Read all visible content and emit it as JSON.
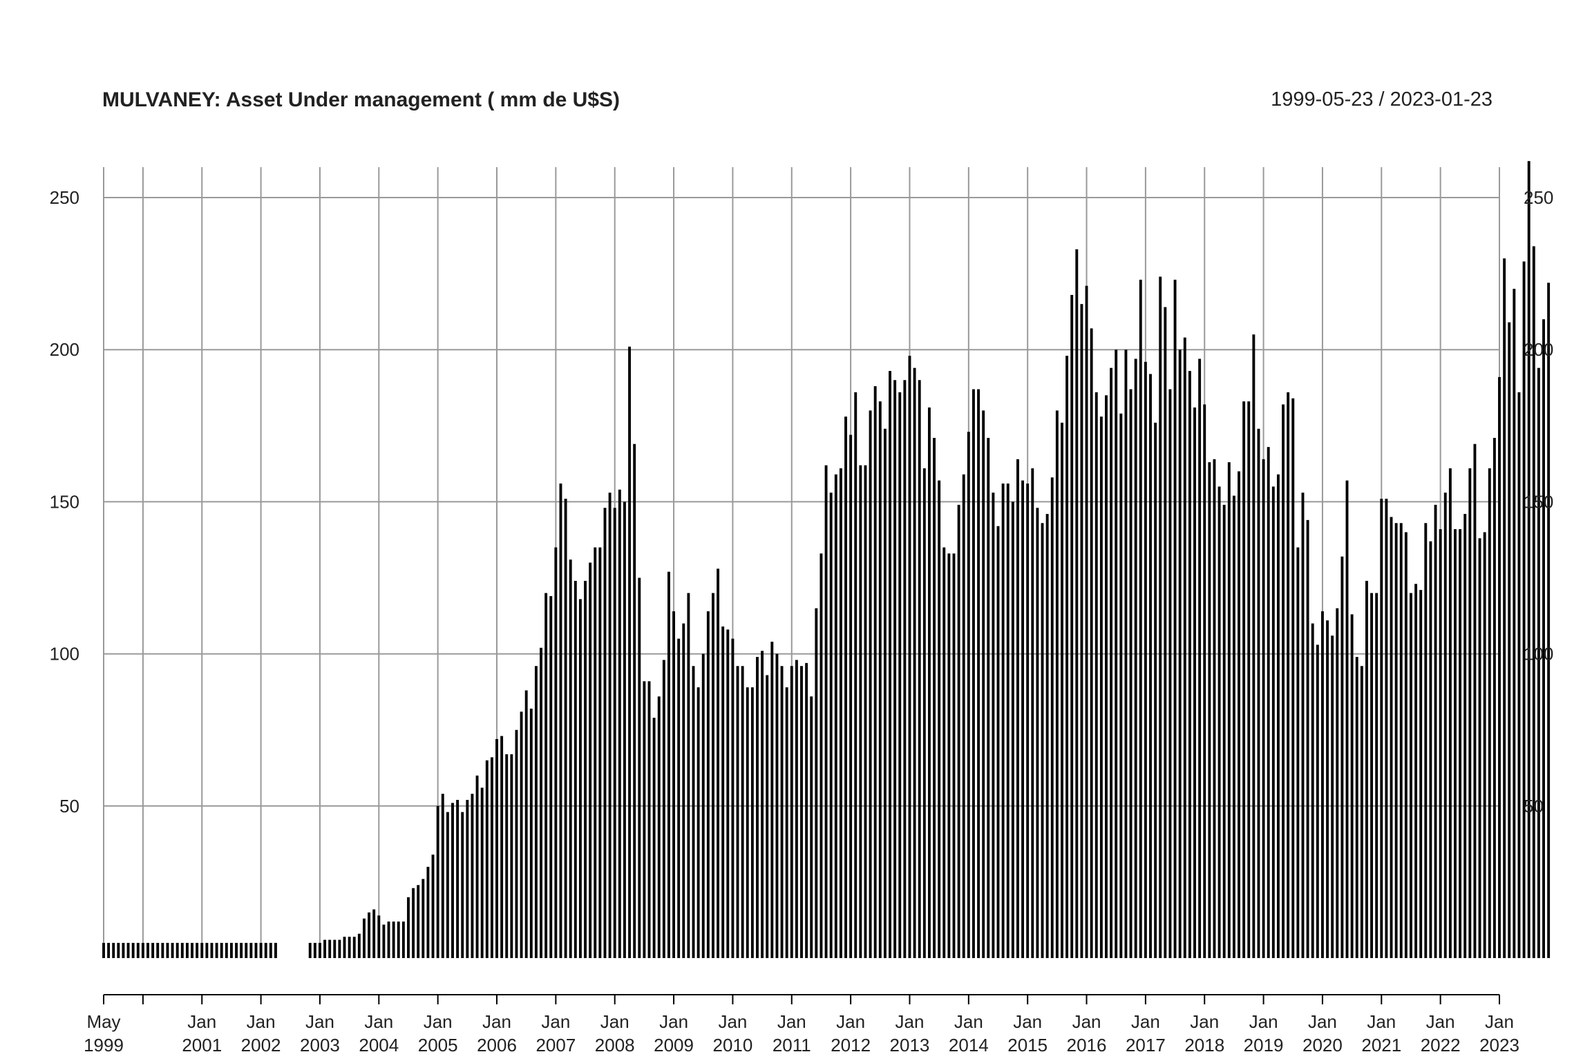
{
  "header": {
    "title": "MULVANEY: Asset Under management ( mm de U$S)",
    "date_range": "1999-05-23 / 2023-01-23"
  },
  "chart_data": {
    "type": "bar",
    "title": "MULVANEY: Asset Under management ( mm de U$S)",
    "subtitle": "1999-05-23 / 2023-01-23",
    "xlabel": "",
    "ylabel": "",
    "x_start": "1999-05",
    "x_end": "2023-01",
    "ylim": [
      0,
      260
    ],
    "yticks": [
      50,
      100,
      150,
      200,
      250
    ],
    "grid": true,
    "bar_color": "#000000",
    "grid_color": "#999999",
    "x_tick_labels": [
      {
        "date": "1999-05",
        "month": "May",
        "year": "1999"
      },
      {
        "date": "2000-01",
        "month": "",
        "year": ""
      },
      {
        "date": "2001-01",
        "month": "Jan",
        "year": "2001"
      },
      {
        "date": "2002-01",
        "month": "Jan",
        "year": "2002"
      },
      {
        "date": "2003-01",
        "month": "Jan",
        "year": "2003"
      },
      {
        "date": "2004-01",
        "month": "Jan",
        "year": "2004"
      },
      {
        "date": "2005-01",
        "month": "Jan",
        "year": "2005"
      },
      {
        "date": "2006-01",
        "month": "Jan",
        "year": "2006"
      },
      {
        "date": "2007-01",
        "month": "Jan",
        "year": "2007"
      },
      {
        "date": "2008-01",
        "month": "Jan",
        "year": "2008"
      },
      {
        "date": "2009-01",
        "month": "Jan",
        "year": "2009"
      },
      {
        "date": "2010-01",
        "month": "Jan",
        "year": "2010"
      },
      {
        "date": "2011-01",
        "month": "Jan",
        "year": "2011"
      },
      {
        "date": "2012-01",
        "month": "Jan",
        "year": "2012"
      },
      {
        "date": "2013-01",
        "month": "Jan",
        "year": "2013"
      },
      {
        "date": "2014-01",
        "month": "Jan",
        "year": "2014"
      },
      {
        "date": "2015-01",
        "month": "Jan",
        "year": "2015"
      },
      {
        "date": "2016-01",
        "month": "Jan",
        "year": "2016"
      },
      {
        "date": "2017-01",
        "month": "Jan",
        "year": "2017"
      },
      {
        "date": "2018-01",
        "month": "Jan",
        "year": "2018"
      },
      {
        "date": "2019-01",
        "month": "Jan",
        "year": "2019"
      },
      {
        "date": "2020-01",
        "month": "Jan",
        "year": "2020"
      },
      {
        "date": "2021-01",
        "month": "Jan",
        "year": "2021"
      },
      {
        "date": "2022-01",
        "month": "Jan",
        "year": "2022"
      },
      {
        "date": "2023-01",
        "month": "Jan",
        "year": "2023"
      }
    ],
    "series": [
      {
        "values": [
          5,
          5,
          5,
          5,
          5,
          5,
          5,
          5,
          5,
          5,
          5,
          5,
          5,
          5,
          5,
          5,
          5,
          5,
          5,
          5,
          5,
          5,
          5,
          5,
          5,
          5,
          5,
          5,
          5,
          5,
          5,
          5,
          5,
          5,
          5,
          5,
          null,
          null,
          null,
          null,
          null,
          null,
          5,
          5,
          5,
          6,
          6,
          6,
          6,
          7,
          7,
          7,
          8,
          13,
          15,
          16,
          14,
          11,
          12,
          12,
          12,
          12,
          20,
          23,
          24,
          26,
          30,
          34,
          50,
          54,
          48,
          51,
          52,
          48,
          52,
          54,
          60,
          56,
          65,
          66,
          72,
          73,
          67,
          67,
          75,
          81,
          88,
          82,
          96,
          102,
          120,
          119,
          135,
          156,
          151,
          131,
          124,
          118,
          124,
          130,
          135,
          135,
          148,
          153,
          148,
          154,
          150,
          201,
          169,
          125,
          91,
          91,
          79,
          86,
          98,
          127,
          114,
          105,
          110,
          120,
          96,
          89,
          100,
          114,
          120,
          128,
          109,
          108,
          105,
          96,
          96,
          89,
          89,
          99,
          101,
          93,
          104,
          100,
          96,
          89,
          96,
          98,
          96,
          97,
          86,
          115,
          133,
          162,
          153,
          159,
          161,
          178,
          172,
          186,
          162,
          162,
          180,
          188,
          183,
          174,
          193,
          190,
          186,
          190,
          198,
          194,
          190,
          161,
          181,
          171,
          157,
          135,
          133,
          133,
          149,
          159,
          173,
          187,
          187,
          180,
          171,
          153,
          142,
          156,
          156,
          150,
          164,
          157,
          156,
          161,
          148,
          143,
          146,
          158,
          180,
          176,
          198,
          218,
          233,
          215,
          221,
          207,
          186,
          178,
          185,
          194,
          200,
          179,
          200,
          187,
          197,
          223,
          196,
          192,
          176,
          224,
          214,
          187,
          223,
          200,
          204,
          193,
          181,
          197,
          182,
          163,
          164,
          155,
          149,
          163,
          152,
          160,
          183,
          183,
          205,
          174,
          164,
          168,
          155,
          159,
          182,
          186,
          184,
          135,
          153,
          144,
          110,
          103,
          114,
          111,
          106,
          115,
          132,
          157,
          113,
          99,
          96,
          124,
          120,
          120,
          151,
          151,
          145,
          143,
          143,
          140,
          120,
          123,
          121,
          143,
          137,
          149,
          141,
          153,
          161,
          141,
          141,
          146,
          161,
          169,
          138,
          140,
          161,
          171,
          191,
          230,
          209,
          220,
          186,
          229,
          262,
          234,
          194,
          210,
          222
        ]
      }
    ]
  }
}
